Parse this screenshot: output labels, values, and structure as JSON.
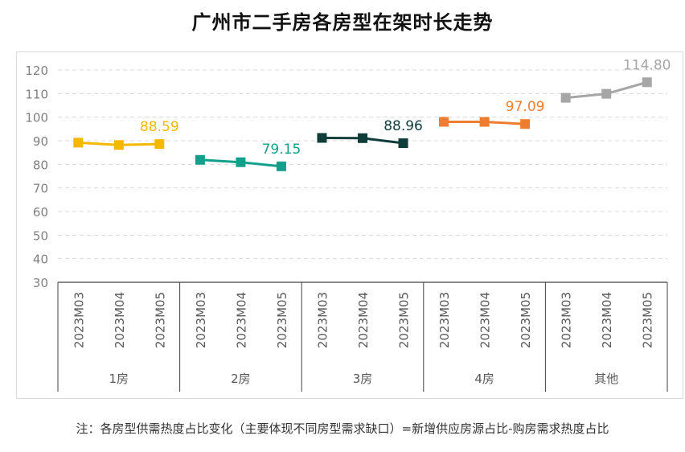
{
  "title": "广州市二手房各房型在架时长走势",
  "note": "注：各房型供需热度占比变化（主要体现不同房型需求缺口）=新增供应房源占比-购房需求热度占比",
  "chart_data": {
    "type": "line",
    "title": "广州市二手房各房型在架时长走势",
    "ylim": [
      30,
      120
    ],
    "yticks": [
      30,
      40,
      50,
      60,
      70,
      80,
      90,
      100,
      110,
      120
    ],
    "grid": true,
    "categories": [
      "2023M03",
      "2023M04",
      "2023M05"
    ],
    "series": [
      {
        "name": "1房",
        "color": "#f5b800",
        "values": [
          89.2,
          88.2,
          88.59
        ],
        "label": "88.59"
      },
      {
        "name": "2房",
        "color": "#12a08a",
        "values": [
          81.9,
          80.9,
          79.15
        ],
        "label": "79.15"
      },
      {
        "name": "3房",
        "color": "#0f3d3a",
        "values": [
          91.2,
          91.1,
          88.96
        ],
        "label": "88.96"
      },
      {
        "name": "4房",
        "color": "#ee7d30",
        "values": [
          98.0,
          98.0,
          97.09
        ],
        "label": "97.09"
      },
      {
        "name": "其他",
        "color": "#a6a6a6",
        "values": [
          108.2,
          109.9,
          114.8
        ],
        "label": "114.80"
      }
    ]
  }
}
